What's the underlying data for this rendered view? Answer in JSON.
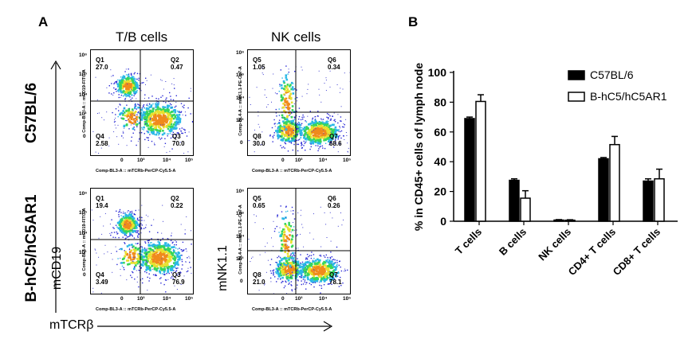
{
  "panel_a": {
    "letter": "A",
    "group_titles": [
      "T/B cells",
      "NK cells"
    ],
    "row_labels": [
      "C57BL/6",
      "B-hC5/hC5AR1"
    ],
    "y_markers": [
      "mCD19",
      "mNK1.1"
    ],
    "x_marker": "mTCRβ",
    "plots": [
      {
        "x_axis_label": "Comp-BL3-A :: mTCRb-PerCP-Cy5.5-A",
        "y_axis_label": "Comp-B…l-A :: mCD19-FITC-A",
        "quadrants": [
          {
            "name": "Q1",
            "value": "27.0"
          },
          {
            "name": "Q2",
            "value": "0.47"
          },
          {
            "name": "Q3",
            "value": "70.0"
          },
          {
            "name": "Q4",
            "value": "2.58"
          }
        ]
      },
      {
        "x_axis_label": "Comp-BL3-A :: mTCRb-PerCP-Cy5.5-A",
        "y_axis_label": "Comp-BL4-A :: mNK1.1-PE-Cy7-A",
        "quadrants": [
          {
            "name": "Q5",
            "value": "1.05"
          },
          {
            "name": "Q6",
            "value": "0.34"
          },
          {
            "name": "Q7",
            "value": "68.6"
          },
          {
            "name": "Q8",
            "value": "30.0"
          }
        ]
      },
      {
        "x_axis_label": "Comp-BL3-A :: mTCRb-PerCP-Cy5.5-A",
        "y_axis_label": "Comp-BL1-A :: mCD19-FITC-A",
        "quadrants": [
          {
            "name": "Q1",
            "value": "19.4"
          },
          {
            "name": "Q2",
            "value": "0.22"
          },
          {
            "name": "Q3",
            "value": "76.9"
          },
          {
            "name": "Q4",
            "value": "3.49"
          }
        ]
      },
      {
        "x_axis_label": "Comp-BL3-A :: mTCRb-PerCP-Cy5.5-A",
        "y_axis_label": "Comp-BL4-A :: mNK1.1-PE-Cy7-A",
        "quadrants": [
          {
            "name": "Q5",
            "value": "0.65"
          },
          {
            "name": "Q6",
            "value": "0.26"
          },
          {
            "name": "Q7",
            "value": "78.1"
          },
          {
            "name": "Q8",
            "value": "21.0"
          }
        ]
      }
    ],
    "tick_labels": {
      "x": [
        "0",
        "10³",
        "10⁴",
        "10⁵"
      ],
      "y_top": [
        "10⁶",
        "10⁵",
        "10⁴",
        "10³",
        "0"
      ],
      "y_bottom": [
        "10⁶",
        "10⁵",
        "10⁴",
        "10³",
        "0"
      ]
    }
  },
  "chart_data": {
    "panel_letter": "B",
    "type": "bar",
    "categories": [
      "T cells",
      "B cells",
      "NK cells",
      "CD4+ T cells",
      "CD8+ T cells"
    ],
    "series": [
      {
        "name": "C57BL/6",
        "values": [
          69,
          27.5,
          0.8,
          42,
          27
        ],
        "errors": [
          1,
          1,
          0.3,
          0.8,
          1.5
        ],
        "color": "#000000"
      },
      {
        "name": "B-hC5/hC5AR1",
        "values": [
          80.5,
          15.5,
          0.7,
          51.5,
          28.5
        ],
        "errors": [
          4.5,
          5,
          0.3,
          5.5,
          6.5
        ],
        "color": "#ffffff"
      }
    ],
    "xlabel": "",
    "ylabel": "% in CD45+ cells of lymph node",
    "ylim": [
      0,
      100
    ],
    "yticks": [
      0,
      20,
      40,
      60,
      80,
      100
    ],
    "grid": false,
    "legend_position": "top-right"
  }
}
